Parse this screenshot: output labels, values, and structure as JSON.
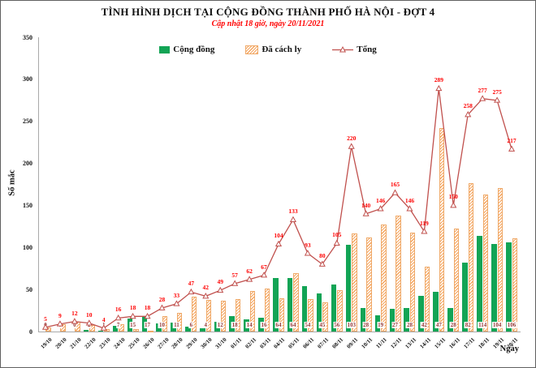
{
  "chart_data": {
    "type": "bar",
    "title": "TÌNH HÌNH DỊCH TẠI CỘNG ĐỒNG THÀNH PHỐ HÀ NỘI - ĐỢT 4",
    "subtitle": "Cập nhật 18 giờ, ngày 20/11/2021",
    "xlabel": "Ngày",
    "ylabel": "Số mắc",
    "ylim": [
      0,
      350
    ],
    "ytick_step": 50,
    "grid": false,
    "legend_position": "top",
    "categories": [
      "19/10",
      "20/10",
      "21/10",
      "22/10",
      "23/10",
      "24/10",
      "25/10",
      "26/10",
      "27/10",
      "28/10",
      "29/10",
      "30/10",
      "31/10",
      "01/11",
      "02/11",
      "03/11",
      "04/11",
      "05/11",
      "06/11",
      "07/11",
      "08/11",
      "09/11",
      "10/11",
      "11/11",
      "12/11",
      "13/11",
      "14/11",
      "15/11",
      "16/11",
      "17/11",
      "18/11",
      "19/11",
      "20/11"
    ],
    "series": [
      {
        "name": "Cộng đồng",
        "type": "bar",
        "color": "#12A455",
        "label_color": "#953735",
        "labels_shown": true,
        "values": [
          0,
          0,
          0,
          2,
          1,
          7,
          15,
          17,
          10,
          11,
          6,
          4,
          12,
          18,
          14,
          16,
          64,
          64,
          54,
          45,
          56,
          103,
          28,
          19,
          27,
          28,
          42,
          47,
          28,
          82,
          114,
          104,
          106
        ]
      },
      {
        "name": "Đã cách ly",
        "type": "bar",
        "style": "hatched",
        "color": "#F2A254",
        "labels_shown": false,
        "values": [
          5,
          9,
          12,
          8,
          3,
          9,
          3,
          1,
          18,
          22,
          41,
          38,
          37,
          39,
          48,
          51,
          40,
          69,
          39,
          35,
          49,
          117,
          112,
          127,
          138,
          118,
          77,
          242,
          122,
          176,
          163,
          171,
          111
        ]
      },
      {
        "name": "Tổng",
        "type": "line",
        "color": "#C0504D",
        "marker": "triangle-open",
        "label_color": "#FF0000",
        "labels_shown": true,
        "values": [
          5,
          9,
          12,
          10,
          4,
          16,
          18,
          18,
          28,
          33,
          47,
          42,
          49,
          57,
          62,
          67,
          104,
          133,
          93,
          80,
          105,
          220,
          140,
          146,
          165,
          146,
          119,
          289,
          150,
          258,
          277,
          275,
          217
        ]
      }
    ]
  }
}
